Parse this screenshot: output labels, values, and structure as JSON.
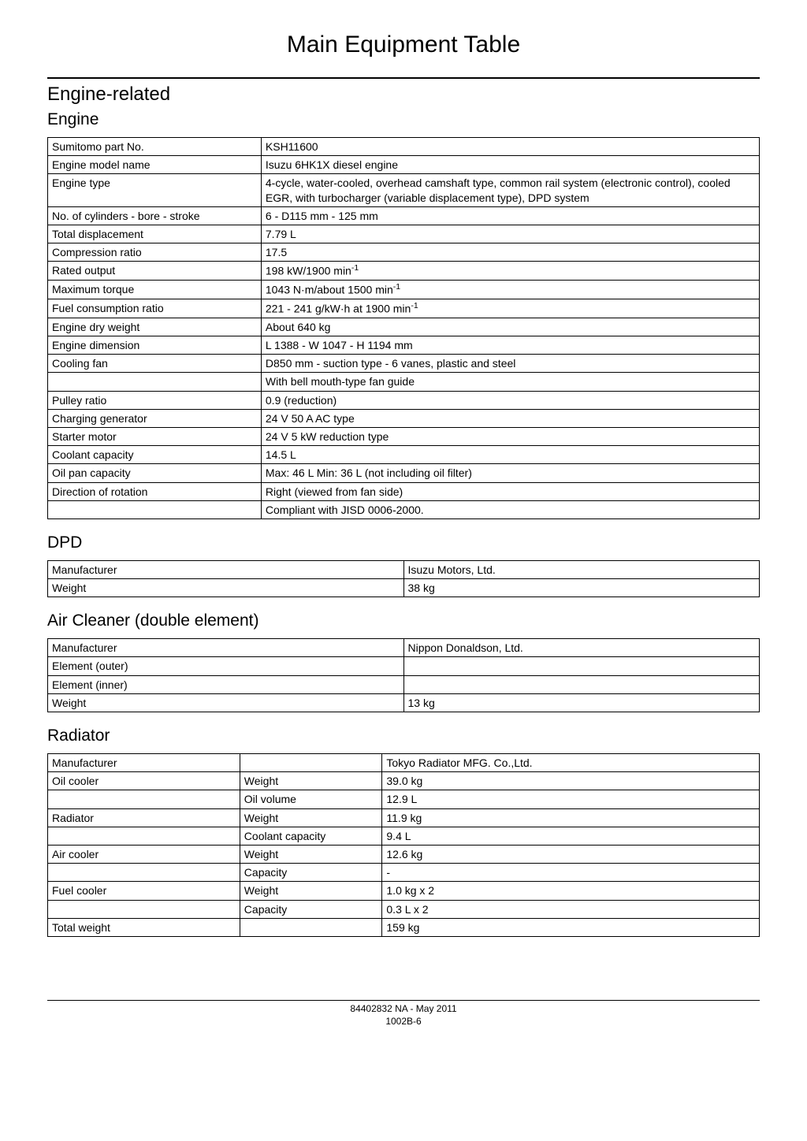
{
  "page_title": "Main Equipment Table",
  "section_engine_related": "Engine-related",
  "engine": {
    "title": "Engine",
    "rows": [
      {
        "label": "Sumitomo part No.",
        "value": "KSH11600"
      },
      {
        "label": "Engine model name",
        "value": "Isuzu 6HK1X diesel engine"
      },
      {
        "label": "Engine type",
        "value": "4-cycle, water-cooled, overhead camshaft type, common rail system (electronic control), cooled EGR, with turbocharger (variable displacement type), DPD system"
      },
      {
        "label": "No. of cylinders - bore - stroke",
        "value": "6 - D115 mm - 125 mm"
      },
      {
        "label": "Total displacement",
        "value": "7.79 L"
      },
      {
        "label": "Compression ratio",
        "value": "17.5"
      },
      {
        "label": "Rated output",
        "value_html": "198 kW/1900 min<sup>-1</sup>"
      },
      {
        "label": "Maximum torque",
        "value_html": "1043 N·m/about 1500 min<sup>-1</sup>"
      },
      {
        "label": "Fuel consumption ratio",
        "value_html": "221 - 241 g/kW·h at 1900 min<sup>-1</sup>"
      },
      {
        "label": "Engine dry weight",
        "value": "About 640 kg"
      },
      {
        "label": "Engine dimension",
        "value": "L 1388 - W 1047 - H 1194 mm"
      },
      {
        "label": "Cooling fan",
        "value": "D850 mm - suction type - 6 vanes, plastic and steel"
      },
      {
        "label": "",
        "value": "With bell mouth-type fan guide"
      },
      {
        "label": "Pulley ratio",
        "value": "0.9 (reduction)"
      },
      {
        "label": "Charging generator",
        "value": "24 V 50 A AC type"
      },
      {
        "label": "Starter motor",
        "value": "24 V 5 kW reduction type"
      },
      {
        "label": "Coolant capacity",
        "value": "14.5 L"
      },
      {
        "label": "Oil pan capacity",
        "value": "Max: 46 L Min: 36 L (not including oil filter)"
      },
      {
        "label": "Direction of rotation",
        "value": "Right (viewed from fan side)"
      },
      {
        "label": "",
        "value": "Compliant with JISD 0006-2000."
      }
    ]
  },
  "dpd": {
    "title": "DPD",
    "rows": [
      {
        "label": "Manufacturer",
        "value": "Isuzu Motors, Ltd."
      },
      {
        "label": "Weight",
        "value": "38 kg"
      }
    ]
  },
  "air_cleaner": {
    "title": "Air Cleaner (double element)",
    "rows": [
      {
        "label": "Manufacturer",
        "value": "Nippon Donaldson, Ltd."
      },
      {
        "label": "Element (outer)",
        "value": ""
      },
      {
        "label": "Element (inner)",
        "value": ""
      },
      {
        "label": "Weight",
        "value": "13 kg"
      }
    ]
  },
  "radiator": {
    "title": "Radiator",
    "rows": [
      {
        "a": "Manufacturer",
        "b": "",
        "c": "Tokyo Radiator MFG. Co.,Ltd."
      },
      {
        "a": "Oil cooler",
        "b": "Weight",
        "c": "39.0 kg"
      },
      {
        "a": "",
        "b": "Oil volume",
        "c": "12.9 L"
      },
      {
        "a": "Radiator",
        "b": "Weight",
        "c": "11.9 kg"
      },
      {
        "a": "",
        "b": "Coolant capacity",
        "c": "9.4 L"
      },
      {
        "a": "Air cooler",
        "b": "Weight",
        "c": "12.6 kg"
      },
      {
        "a": "",
        "b": "Capacity",
        "c": "-"
      },
      {
        "a": "Fuel cooler",
        "b": "Weight",
        "c": "1.0 kg x 2"
      },
      {
        "a": "",
        "b": "Capacity",
        "c": "0.3 L x 2"
      },
      {
        "a": "Total weight",
        "b": "",
        "c": "159 kg"
      }
    ]
  },
  "footer": {
    "line1": "84402832 NA - May 2011",
    "line2": "1002B-6"
  }
}
